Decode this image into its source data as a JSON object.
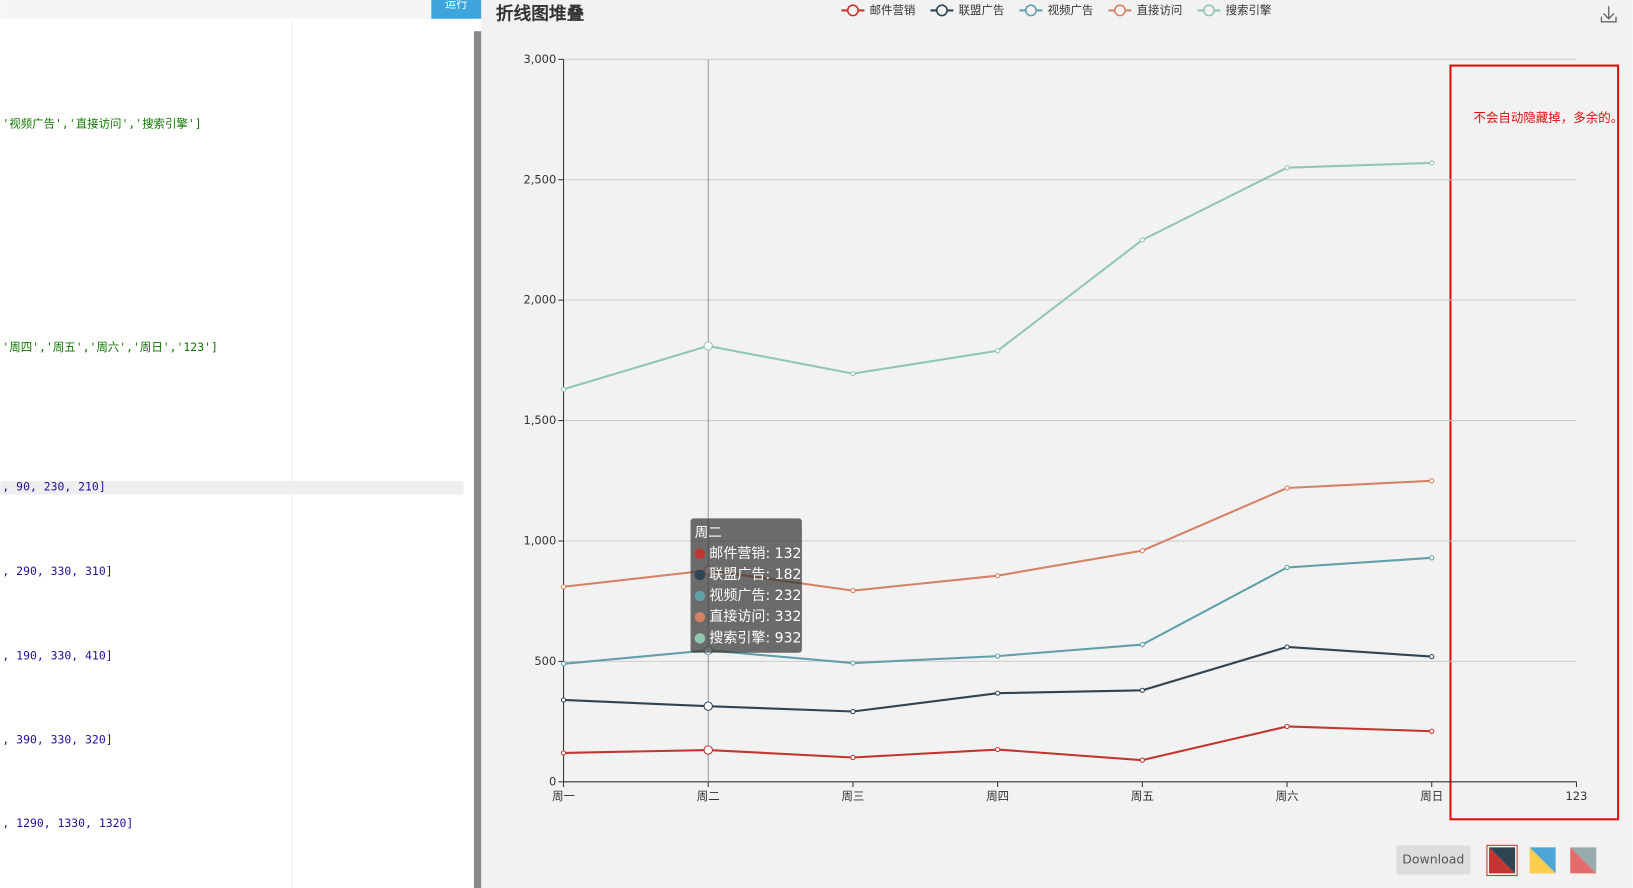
{
  "editor": {
    "run_button": "运行",
    "code_lines": [
      "'视频广告','直接访问','搜索引擎']",
      "'周四','周五','周六','周日','123']",
      ", 90, 230, 210]",
      ", 290, 330, 310]",
      ", 190, 330, 410]",
      ", 390, 330, 320]",
      ", 1290, 1330, 1320]"
    ]
  },
  "chart_data": {
    "type": "line",
    "stacked": true,
    "title": "折线图堆叠",
    "categories": [
      "周一",
      "周二",
      "周三",
      "周四",
      "周五",
      "周六",
      "周日",
      "123"
    ],
    "series": [
      {
        "name": "邮件营销",
        "color": "#c23531",
        "values": [
          120,
          132,
          101,
          134,
          90,
          230,
          210,
          null
        ]
      },
      {
        "name": "联盟广告",
        "color": "#2f4554",
        "values": [
          220,
          182,
          191,
          234,
          290,
          330,
          310,
          null
        ]
      },
      {
        "name": "视频广告",
        "color": "#61a0a8",
        "values": [
          150,
          232,
          201,
          154,
          190,
          330,
          410,
          null
        ]
      },
      {
        "name": "直接访问",
        "color": "#d48265",
        "values": [
          320,
          332,
          301,
          334,
          390,
          330,
          320,
          null
        ]
      },
      {
        "name": "搜索引擎",
        "color": "#91c7ae",
        "values": [
          820,
          932,
          901,
          934,
          1290,
          1330,
          1320,
          null
        ]
      }
    ],
    "ylim": [
      0,
      3000
    ],
    "yticks": [
      0,
      500,
      {
        "value": 1000,
        "label": "1,000"
      },
      {
        "value": 1500,
        "label": "1,500"
      },
      {
        "value": 2000,
        "label": "2,000"
      },
      {
        "value": 2500,
        "label": "2,500"
      },
      {
        "value": 3000,
        "label": "3,000"
      }
    ],
    "grid": true,
    "legend": "top",
    "tooltip": {
      "category_index": 1,
      "title": "周二",
      "items": [
        "邮件营销: 132",
        "联盟广告: 182",
        "视频广告: 232",
        "直接访问: 332",
        "搜索引擎: 932"
      ]
    }
  },
  "annotation": "不会自动隐藏掉，多余的。",
  "toolbar": {
    "download": "Download"
  }
}
